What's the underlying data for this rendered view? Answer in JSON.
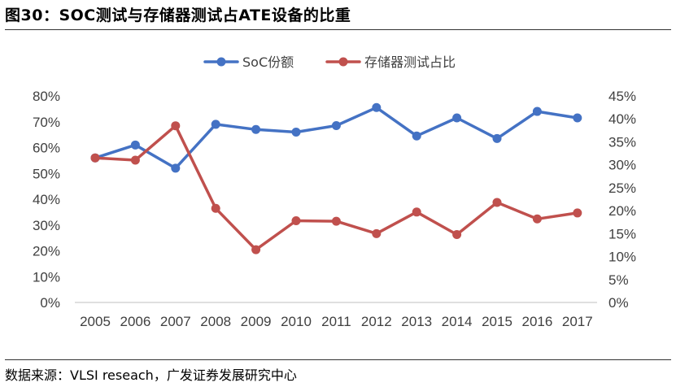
{
  "figure": {
    "title": "图30：SOC测试与存储器测试占ATE设备的比重",
    "source": "数据来源：VLSI reseach，广发证券发展研究中心"
  },
  "chart_data": {
    "type": "line",
    "x": [
      "2005",
      "2006",
      "2007",
      "2008",
      "2009",
      "2010",
      "2011",
      "2012",
      "2013",
      "2014",
      "2015",
      "2016",
      "2017"
    ],
    "series": [
      {
        "name": "SoC份额",
        "axis": "left",
        "color": "#4472C4",
        "values": [
          0.56,
          0.61,
          0.52,
          0.69,
          0.67,
          0.66,
          0.685,
          0.755,
          0.645,
          0.715,
          0.635,
          0.74,
          0.715
        ]
      },
      {
        "name": "存储器测试占比",
        "axis": "right",
        "color": "#C0504D",
        "values": [
          0.315,
          0.31,
          0.385,
          0.205,
          0.115,
          0.178,
          0.177,
          0.15,
          0.197,
          0.148,
          0.218,
          0.182,
          0.195
        ]
      }
    ],
    "y_left": {
      "min": 0,
      "max": 0.8,
      "step": 0.1,
      "tick_labels": [
        "0%",
        "10%",
        "20%",
        "30%",
        "40%",
        "50%",
        "60%",
        "70%",
        "80%"
      ]
    },
    "y_right": {
      "min": 0,
      "max": 0.45,
      "step": 0.05,
      "tick_labels": [
        "0%",
        "5%",
        "10%",
        "15%",
        "20%",
        "25%",
        "30%",
        "35%",
        "40%",
        "45%"
      ]
    },
    "legend_position": "top-center",
    "grid": false
  }
}
